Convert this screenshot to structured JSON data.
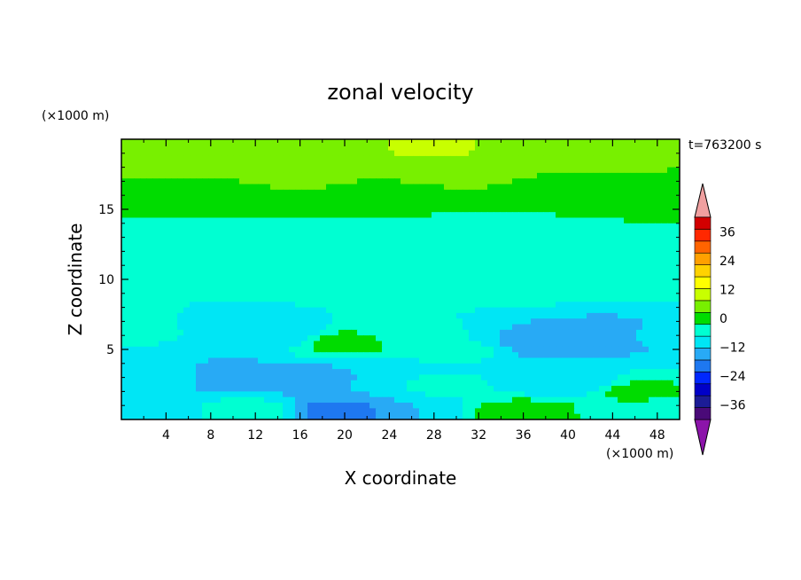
{
  "chart_data": {
    "type": "heatmap",
    "title": "zonal velocity",
    "xlabel": "X coordinate",
    "ylabel": "Z coordinate",
    "x_units": "(×1000 m)",
    "y_units": "(×1000 m)",
    "time_label": "t=763200 s",
    "xlim": [
      0,
      50
    ],
    "ylim": [
      0,
      20
    ],
    "x_ticks": [
      4,
      8,
      12,
      16,
      20,
      24,
      28,
      32,
      36,
      40,
      44,
      48
    ],
    "y_ticks": [
      5,
      10,
      15
    ],
    "colorbar": {
      "min": -42,
      "max": 42,
      "step": 6,
      "tick_values": [
        36,
        24,
        12,
        0,
        -12,
        -24,
        -36
      ],
      "tick_labels": [
        "36",
        "24",
        "12",
        "0",
        "−12",
        "−24",
        "−36"
      ],
      "colors": [
        "#4a0a78",
        "#1c1c96",
        "#0000c8",
        "#0028ff",
        "#1e78f0",
        "#28aaf5",
        "#00e6f5",
        "#00ffd2",
        "#00dc00",
        "#78f000",
        "#c8ff00",
        "#ffff00",
        "#ffd200",
        "#ffa000",
        "#ff6400",
        "#ff2800",
        "#d20000"
      ],
      "under_color": "#8c14aa",
      "over_color": "#f0a0a0"
    },
    "field_description": "Contour-filled zonal velocity in x-z section; mostly -6..+12 range, positive (yellow) jet near top, cyan negative regions in lower levels",
    "anchors": [
      {
        "x": 4,
        "z": 19.5,
        "v": 15
      },
      {
        "x": 12,
        "z": 19.5,
        "v": 16
      },
      {
        "x": 20,
        "z": 19.5,
        "v": 17
      },
      {
        "x": 28,
        "z": 19.5,
        "v": 19
      },
      {
        "x": 36,
        "z": 19.5,
        "v": 16
      },
      {
        "x": 46,
        "z": 19.5,
        "v": 14
      },
      {
        "x": 4,
        "z": 17.5,
        "v": 12
      },
      {
        "x": 16,
        "z": 17.5,
        "v": 13
      },
      {
        "x": 30,
        "z": 17.5,
        "v": 13
      },
      {
        "x": 42,
        "z": 17.5,
        "v": 12
      },
      {
        "x": 8,
        "z": 15.5,
        "v": 8
      },
      {
        "x": 24,
        "z": 15.5,
        "v": 7
      },
      {
        "x": 40,
        "z": 15.5,
        "v": 6
      },
      {
        "x": 48,
        "z": 15.5,
        "v": 8
      },
      {
        "x": 6,
        "z": 13,
        "v": 3
      },
      {
        "x": 20,
        "z": 12.5,
        "v": 2
      },
      {
        "x": 30,
        "z": 13,
        "v": 1
      },
      {
        "x": 44,
        "z": 12.5,
        "v": 2
      },
      {
        "x": 4,
        "z": 10,
        "v": 4
      },
      {
        "x": 14,
        "z": 10.5,
        "v": 5
      },
      {
        "x": 24,
        "z": 10,
        "v": 3
      },
      {
        "x": 36,
        "z": 10,
        "v": 4
      },
      {
        "x": 46,
        "z": 10,
        "v": 3
      },
      {
        "x": 2,
        "z": 7,
        "v": 6
      },
      {
        "x": 8,
        "z": 7,
        "v": -4
      },
      {
        "x": 14,
        "z": 6,
        "v": -6
      },
      {
        "x": 20,
        "z": 5.5,
        "v": 9
      },
      {
        "x": 26,
        "z": 6,
        "v": 1
      },
      {
        "x": 30,
        "z": 5,
        "v": 1
      },
      {
        "x": 38,
        "z": 5.5,
        "v": -10
      },
      {
        "x": 44,
        "z": 6,
        "v": -8
      },
      {
        "x": 48,
        "z": 6,
        "v": -5
      },
      {
        "x": 4,
        "z": 3,
        "v": -5
      },
      {
        "x": 10,
        "z": 3,
        "v": -8
      },
      {
        "x": 16,
        "z": 3,
        "v": -8
      },
      {
        "x": 22,
        "z": 3,
        "v": -6
      },
      {
        "x": 28,
        "z": 2.5,
        "v": 1
      },
      {
        "x": 34,
        "z": 2.5,
        "v": 0
      },
      {
        "x": 40,
        "z": 2.5,
        "v": -6
      },
      {
        "x": 46,
        "z": 2,
        "v": 7
      },
      {
        "x": 3,
        "z": 0.5,
        "v": -6
      },
      {
        "x": 11,
        "z": 0.5,
        "v": 4
      },
      {
        "x": 20,
        "z": 0.5,
        "v": -15
      },
      {
        "x": 26,
        "z": 0.5,
        "v": -6
      },
      {
        "x": 36,
        "z": 0.5,
        "v": 12
      },
      {
        "x": 44,
        "z": 0.5,
        "v": 5
      },
      {
        "x": 49,
        "z": 0.5,
        "v": 3
      }
    ]
  }
}
